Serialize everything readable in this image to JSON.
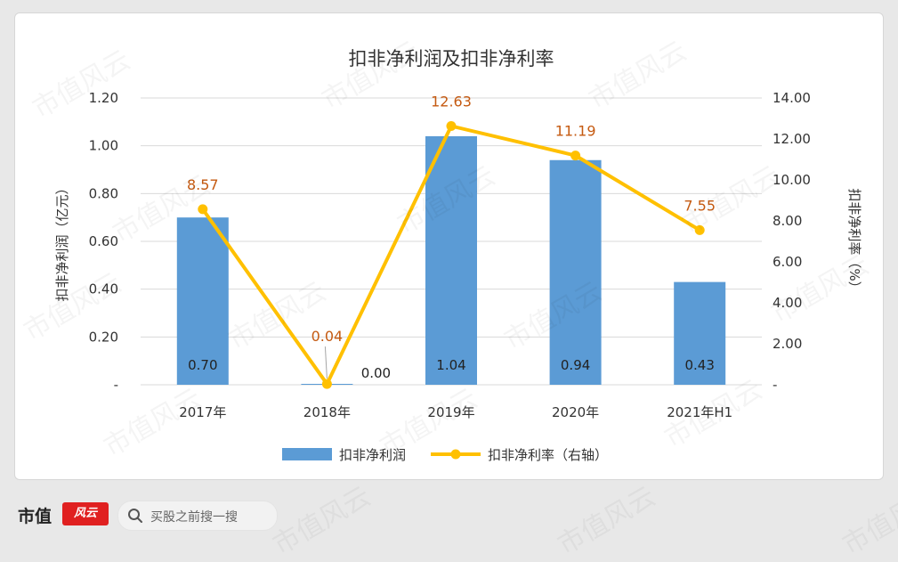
{
  "chart_data": {
    "type": "bar+line",
    "title": "扣非净利润及扣非净利率",
    "categories": [
      "2017年",
      "2018年",
      "2019年",
      "2020年",
      "2021年H1"
    ],
    "series": [
      {
        "name": "扣非净利润",
        "type": "bar",
        "axis": "left",
        "values": [
          0.7,
          0.0,
          1.04,
          0.94,
          0.43
        ],
        "labels": [
          "0.70",
          "0.00",
          "1.04",
          "0.94",
          "0.43"
        ],
        "color": "#5b9bd5"
      },
      {
        "name": "扣非净利率（右轴）",
        "type": "line",
        "axis": "right",
        "values": [
          8.57,
          0.04,
          12.63,
          11.19,
          7.55
        ],
        "labels": [
          "8.57",
          "0.04",
          "12.63",
          "11.19",
          "7.55"
        ],
        "color": "#ffc000",
        "label_color": "#c55a11"
      }
    ],
    "y_left": {
      "label": "扣非净利润（亿元）",
      "range": [
        0,
        1.2
      ],
      "ticks": [
        0,
        0.2,
        0.4,
        0.6,
        0.8,
        1.0,
        1.2
      ],
      "tick_labels": [
        "-",
        "0.20",
        "0.40",
        "0.60",
        "0.80",
        "1.00",
        "1.20"
      ]
    },
    "y_right": {
      "label": "扣非净利率（%）",
      "range": [
        0,
        14
      ],
      "ticks": [
        0,
        2,
        4,
        6,
        8,
        10,
        12,
        14
      ],
      "tick_labels": [
        "-",
        "2.00",
        "4.00",
        "6.00",
        "8.00",
        "10.00",
        "12.00",
        "14.00"
      ]
    },
    "grid": true,
    "legend": "bottom"
  },
  "footer": {
    "brand": "市值",
    "brand_mark": "风云",
    "search_placeholder": "买股之前搜一搜"
  },
  "watermark": "市值风云"
}
